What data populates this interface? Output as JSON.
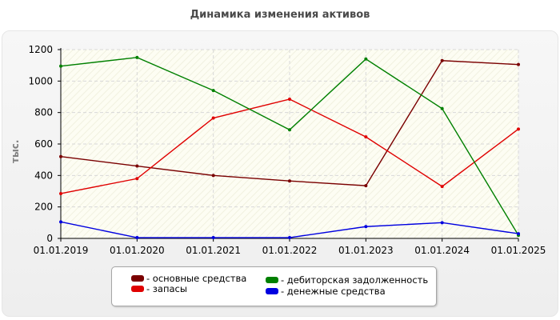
{
  "chart_data": {
    "type": "line",
    "title": "Динамика изменения активов",
    "ylabel": "тыс.",
    "xlabel": "",
    "ylim": [
      0,
      1200
    ],
    "yticks": [
      0,
      200,
      400,
      600,
      800,
      1000,
      1200
    ],
    "categories": [
      "01.01.2019",
      "01.01.2020",
      "01.01.2021",
      "01.01.2022",
      "01.01.2023",
      "01.01.2024",
      "01.01.2025"
    ],
    "grid": true,
    "legend_position": "bottom",
    "series": [
      {
        "name": "- основные средства",
        "color": "#7a0000",
        "values": [
          520,
          460,
          400,
          365,
          335,
          1130,
          1105
        ]
      },
      {
        "name": "- запасы",
        "color": "#e00000",
        "values": [
          285,
          380,
          765,
          885,
          645,
          330,
          695
        ]
      },
      {
        "name": "- дебиторская задолженность",
        "color": "#008000",
        "values": [
          1095,
          1150,
          940,
          690,
          1140,
          825,
          20
        ]
      },
      {
        "name": "- денежные средства",
        "color": "#0000e0",
        "values": [
          105,
          5,
          5,
          5,
          75,
          100,
          30
        ]
      }
    ]
  }
}
